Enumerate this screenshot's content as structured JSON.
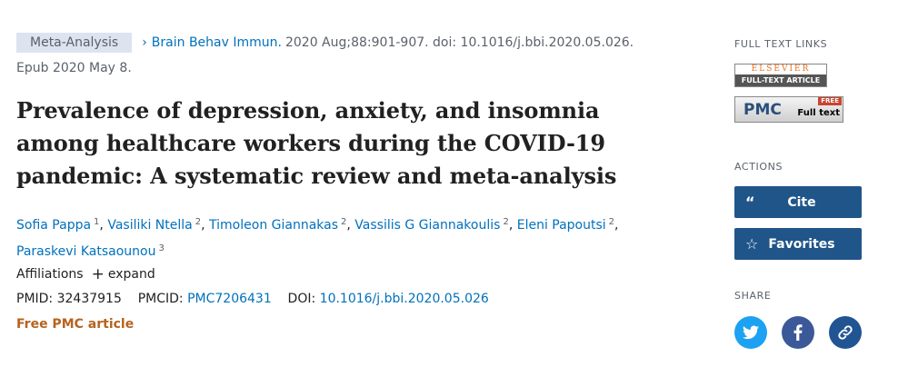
{
  "citation": {
    "badge": "Meta-Analysis",
    "journal": "Brain Behav Immun.",
    "details": "2020 Aug;88:901-907. doi: 10.1016/j.bbi.2020.05.026.",
    "epub": "Epub 2020 May 8."
  },
  "title_lines": [
    "Prevalence of depression, anxiety, and insomnia",
    "among healthcare workers during the COVID-19",
    "pandemic: A systematic review and meta-analysis"
  ],
  "authors": [
    {
      "name": "Sofia Pappa",
      "aff": "1"
    },
    {
      "name": "Vasiliki Ntella",
      "aff": "2"
    },
    {
      "name": "Timoleon Giannakas",
      "aff": "2"
    },
    {
      "name": "Vassilis G Giannakoulis",
      "aff": "2"
    },
    {
      "name": "Eleni Papoutsi",
      "aff": "2"
    },
    {
      "name": "Paraskevi Katsaounou",
      "aff": "3"
    }
  ],
  "affiliations": {
    "label": "Affiliations",
    "expand": "expand"
  },
  "ids": {
    "pmid_label": "PMID:",
    "pmid": "32437915",
    "pmcid_label": "PMCID:",
    "pmcid": "PMC7206431",
    "doi_label": "DOI:",
    "doi": "10.1016/j.bbi.2020.05.026"
  },
  "free_pmc": "Free PMC article",
  "sidebar": {
    "full_text_links": "FULL TEXT LINKS",
    "elsevier_top": "ELSEVIER",
    "elsevier_bottom": "FULL-TEXT ARTICLE",
    "pmc_logo": "PMC",
    "pmc_free": "FREE",
    "pmc_full": "Full text",
    "actions": "ACTIONS",
    "cite": "Cite",
    "favorites": "Favorites",
    "share": "SHARE"
  },
  "colors": {
    "accent": "#20558a",
    "link": "#0071bc",
    "twitter": "#1da1f2",
    "facebook": "#3b5998",
    "link_share": "#205493",
    "free": "#b5631f"
  },
  "icons": [
    "chevron-right-icon",
    "plus-icon",
    "quote-icon",
    "star-icon",
    "twitter-icon",
    "facebook-icon",
    "link-icon"
  ]
}
